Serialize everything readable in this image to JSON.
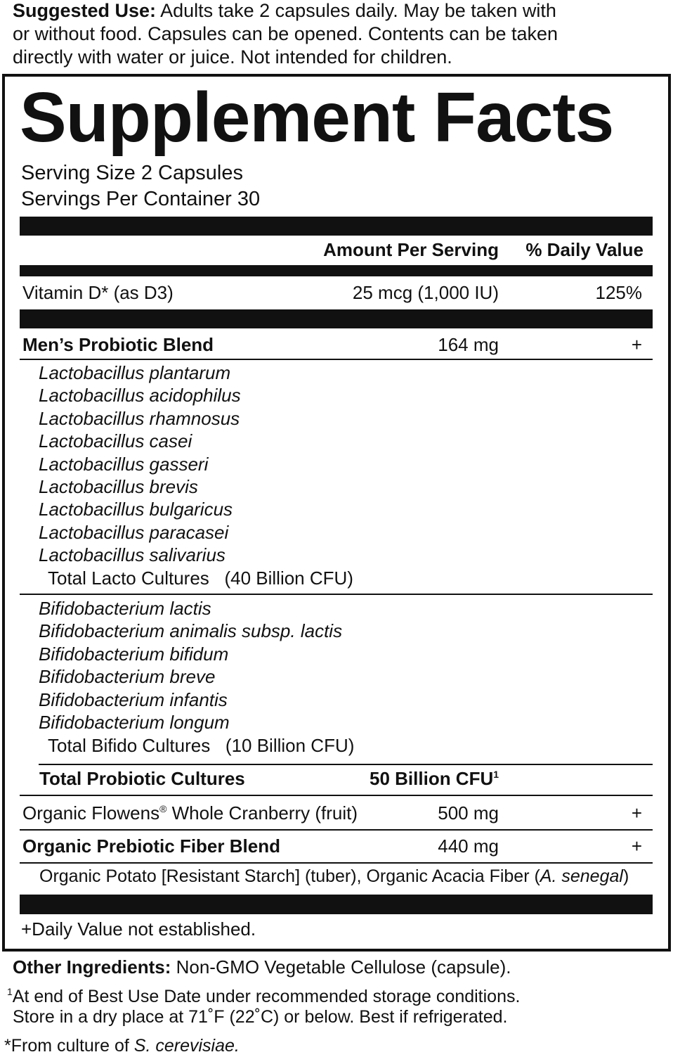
{
  "suggested_use": {
    "label": "Suggested Use:",
    "lines": [
      "Adults take 2 capsules daily. May be taken with",
      "or without food. Capsules can be opened. Contents can be taken",
      "directly with water or juice. Not intended for children."
    ]
  },
  "facts": {
    "title": "Supplement Facts",
    "serving_size": "Serving Size 2 Capsules",
    "servings_per_container": "Servings Per Container 30",
    "header": {
      "amount": "Amount Per Serving",
      "dv": "% Daily Value"
    },
    "vitamin": {
      "name": "Vitamin D* (as D3)",
      "amount": "25 mcg (1,000 IU)",
      "dv": "125%"
    },
    "blend": {
      "name": "Men’s Probiotic Blend",
      "amount": "164 mg",
      "dv": "+"
    },
    "lacto": {
      "strains": [
        "Lactobacillus plantarum",
        "Lactobacillus acidophilus",
        "Lactobacillus rhamnosus",
        "Lactobacillus casei",
        "Lactobacillus gasseri",
        "Lactobacillus brevis",
        "Lactobacillus bulgaricus",
        "Lactobacillus paracasei",
        "Lactobacillus salivarius"
      ],
      "total_label": "Total Lacto Cultures",
      "total": "(40 Billion CFU)"
    },
    "bifido": {
      "strains": [
        "Bifidobacterium lactis",
        "Bifidobacterium animalis subsp. lactis",
        "Bifidobacterium bifidum",
        "Bifidobacterium breve",
        "Bifidobacterium infantis",
        "Bifidobacterium longum"
      ],
      "total_label": "Total Bifido Cultures",
      "total": "(10 Billion CFU)"
    },
    "total_probiotic": {
      "name": "Total Probiotic Cultures",
      "amount": "50 Billion CFU",
      "note": "1"
    },
    "cranberry": {
      "name_a": "Organic Flowens",
      "reg": "®",
      "name_b": " Whole Cranberry (fruit)",
      "amount": "500 mg",
      "dv": "+"
    },
    "fiber": {
      "name": "Organic Prebiotic Fiber Blend",
      "amount": "440 mg",
      "dv": "+",
      "ingredients_a": "Organic Potato [Resistant Starch] (tuber), Organic Acacia Fiber (",
      "ingredients_italic": "A. senegal",
      "ingredients_b": ")"
    },
    "footnote": "+Daily Value not established."
  },
  "other_ingredients": {
    "label": "Other Ingredients:",
    "text": " Non-GMO Vegetable Cellulose (capsule)."
  },
  "notes": {
    "mark": "1",
    "line1": "At end of Best Use Date under recommended storage conditions.",
    "line2": "Store in a dry place at 71˚F (22˚C) or below. Best if refrigerated.",
    "culture_a": "*From culture of ",
    "culture_italic": "S. cerevisiae."
  }
}
